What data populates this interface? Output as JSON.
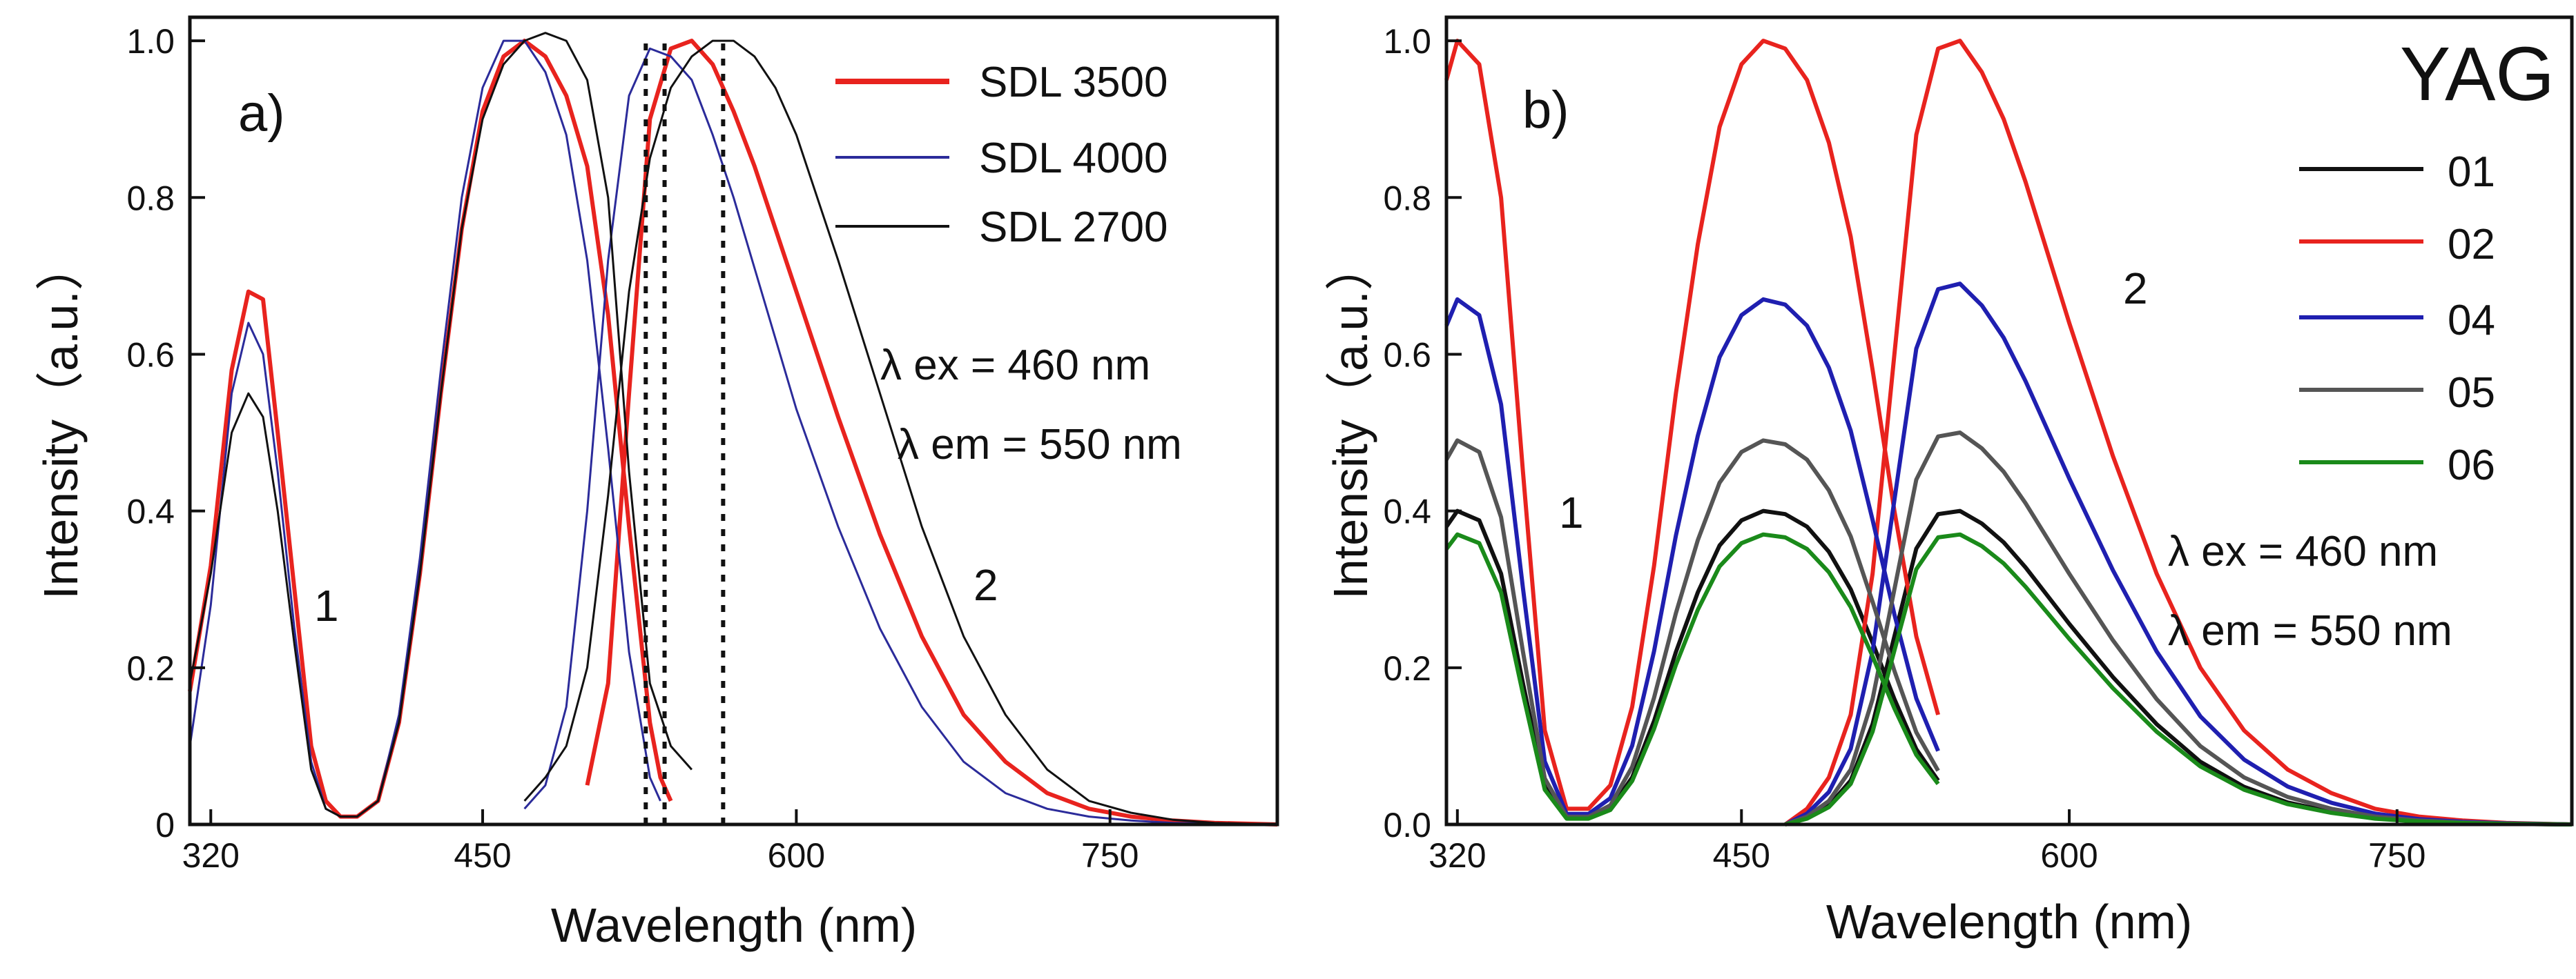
{
  "chart_data": [
    {
      "type": "line",
      "panel_tag": "a)",
      "xlabel": "Wavelength  (nm)",
      "ylabel": "Intensity（a.u.）",
      "xlim": [
        310,
        830
      ],
      "ylim": [
        0,
        1.03
      ],
      "xticks": [
        320,
        450,
        600,
        750
      ],
      "yticks": [
        0,
        0.2,
        0.4,
        0.6,
        0.8,
        1.0
      ],
      "xtick_labels": [
        "320",
        "450",
        "600",
        "750"
      ],
      "ytick_labels": [
        "0",
        "0.2",
        "0.4",
        "0.6",
        "0.8",
        "1.0"
      ],
      "legend_position": "top-right",
      "annotations": [
        "λ ex = 460 nm",
        "λ em = 550 nm"
      ],
      "curve_labels": [
        "1",
        "2"
      ],
      "vertical_markers": [
        528,
        537,
        565
      ],
      "series": [
        {
          "name": "SDL 3500",
          "color": "#e8231e",
          "width": 6,
          "excitation": {
            "x": [
              310,
              320,
              330,
              338,
              345,
              352,
              360,
              368,
              375,
              382,
              390,
              400,
              410,
              420,
              430,
              440,
              450,
              460,
              470,
              480,
              490,
              500,
              510,
              520,
              530,
              535,
              540
            ],
            "y": [
              0.17,
              0.33,
              0.58,
              0.68,
              0.67,
              0.5,
              0.3,
              0.1,
              0.03,
              0.01,
              0.01,
              0.03,
              0.13,
              0.32,
              0.55,
              0.76,
              0.91,
              0.98,
              1.0,
              0.98,
              0.93,
              0.84,
              0.65,
              0.38,
              0.13,
              0.06,
              0.03
            ]
          },
          "emission": {
            "x": [
              500,
              510,
              520,
              530,
              540,
              550,
              560,
              570,
              580,
              590,
              600,
              620,
              640,
              660,
              680,
              700,
              720,
              740,
              760,
              780,
              800,
              830
            ],
            "y": [
              0.05,
              0.18,
              0.55,
              0.9,
              0.99,
              1.0,
              0.97,
              0.91,
              0.84,
              0.76,
              0.68,
              0.52,
              0.37,
              0.24,
              0.14,
              0.08,
              0.04,
              0.02,
              0.01,
              0.005,
              0.002,
              0.0
            ]
          }
        },
        {
          "name": "SDL 4000",
          "color": "#2b2b9a",
          "width": 3,
          "excitation": {
            "x": [
              310,
              320,
              330,
              338,
              345,
              352,
              360,
              368,
              375,
              382,
              390,
              400,
              410,
              420,
              430,
              440,
              450,
              460,
              470,
              480,
              490,
              500,
              510,
              520,
              530,
              535
            ],
            "y": [
              0.1,
              0.28,
              0.55,
              0.64,
              0.6,
              0.45,
              0.25,
              0.08,
              0.02,
              0.01,
              0.01,
              0.03,
              0.14,
              0.34,
              0.58,
              0.8,
              0.94,
              1.0,
              1.0,
              0.96,
              0.88,
              0.72,
              0.48,
              0.22,
              0.06,
              0.03
            ]
          },
          "emission": {
            "x": [
              470,
              480,
              490,
              500,
              510,
              520,
              530,
              540,
              550,
              560,
              570,
              580,
              590,
              600,
              620,
              640,
              660,
              680,
              700,
              720,
              740,
              760,
              780,
              800,
              830
            ],
            "y": [
              0.02,
              0.05,
              0.15,
              0.4,
              0.72,
              0.93,
              0.99,
              0.98,
              0.95,
              0.88,
              0.8,
              0.71,
              0.62,
              0.53,
              0.38,
              0.25,
              0.15,
              0.08,
              0.04,
              0.02,
              0.01,
              0.005,
              0.002,
              0.001,
              0.0
            ]
          }
        },
        {
          "name": "SDL 2700",
          "color": "#111111",
          "width": 3,
          "excitation": {
            "x": [
              310,
              320,
              330,
              338,
              345,
              352,
              360,
              368,
              375,
              382,
              390,
              400,
              410,
              420,
              430,
              440,
              450,
              460,
              470,
              480,
              490,
              500,
              510,
              520,
              530,
              540,
              550
            ],
            "y": [
              0.18,
              0.32,
              0.5,
              0.55,
              0.52,
              0.4,
              0.23,
              0.07,
              0.02,
              0.01,
              0.01,
              0.03,
              0.13,
              0.32,
              0.55,
              0.76,
              0.9,
              0.97,
              1.0,
              1.01,
              1.0,
              0.95,
              0.8,
              0.45,
              0.18,
              0.1,
              0.07
            ]
          },
          "emission": {
            "x": [
              470,
              480,
              490,
              500,
              510,
              520,
              530,
              540,
              550,
              560,
              570,
              580,
              590,
              600,
              620,
              640,
              660,
              680,
              700,
              720,
              740,
              760,
              780,
              800,
              830
            ],
            "y": [
              0.03,
              0.06,
              0.1,
              0.2,
              0.42,
              0.68,
              0.85,
              0.94,
              0.98,
              1.0,
              1.0,
              0.98,
              0.94,
              0.88,
              0.72,
              0.55,
              0.38,
              0.24,
              0.14,
              0.07,
              0.03,
              0.015,
              0.006,
              0.002,
              0.0
            ]
          }
        }
      ]
    },
    {
      "type": "line",
      "panel_tag": "b)",
      "title": "YAG",
      "xlabel": "Wavelength  (nm)",
      "ylabel": "Intensity（a.u.）",
      "xlim": [
        315,
        830
      ],
      "ylim": [
        0,
        1.03
      ],
      "xticks": [
        320,
        450,
        600,
        750
      ],
      "yticks": [
        0,
        0.2,
        0.4,
        0.6,
        0.8,
        1.0
      ],
      "xtick_labels": [
        "320",
        "450",
        "600",
        "750"
      ],
      "ytick_labels": [
        "0.0",
        "0.2",
        "0.4",
        "0.6",
        "0.8",
        "1.0"
      ],
      "legend_position": "right",
      "annotations": [
        "λ ex = 460 nm",
        "λ em = 550 nm"
      ],
      "curve_labels": [
        "1",
        "2"
      ],
      "excitation_shape": {
        "x": [
          315,
          320,
          330,
          340,
          350,
          360,
          370,
          380,
          390,
          400,
          410,
          420,
          430,
          440,
          450,
          460,
          470,
          480,
          490,
          500,
          510,
          520,
          530,
          540
        ],
        "y": [
          0.95,
          1.0,
          0.97,
          0.8,
          0.45,
          0.12,
          0.02,
          0.02,
          0.05,
          0.15,
          0.33,
          0.55,
          0.74,
          0.89,
          0.97,
          1.0,
          0.99,
          0.95,
          0.87,
          0.75,
          0.58,
          0.4,
          0.24,
          0.14
        ]
      },
      "emission_shape": {
        "x": [
          470,
          480,
          490,
          500,
          510,
          520,
          530,
          540,
          550,
          560,
          570,
          580,
          590,
          600,
          620,
          640,
          660,
          680,
          700,
          720,
          740,
          760,
          780,
          800,
          830
        ],
        "y": [
          0.0,
          0.02,
          0.06,
          0.14,
          0.32,
          0.6,
          0.88,
          0.99,
          1.0,
          0.96,
          0.9,
          0.82,
          0.73,
          0.64,
          0.47,
          0.32,
          0.2,
          0.12,
          0.07,
          0.04,
          0.02,
          0.01,
          0.005,
          0.002,
          0.0
        ]
      },
      "series": [
        {
          "name": "01",
          "color": "#111111",
          "excitation_peak": 0.4,
          "emission_peak": 0.4
        },
        {
          "name": "02",
          "color": "#e8231e",
          "excitation_peak": 1.0,
          "emission_peak": 1.0
        },
        {
          "name": "04",
          "color": "#1f1fb0",
          "excitation_peak": 0.67,
          "emission_peak": 0.69
        },
        {
          "name": "05",
          "color": "#555555",
          "excitation_peak": 0.49,
          "emission_peak": 0.5
        },
        {
          "name": "06",
          "color": "#1a8a1a",
          "excitation_peak": 0.37,
          "emission_peak": 0.37
        }
      ]
    }
  ]
}
